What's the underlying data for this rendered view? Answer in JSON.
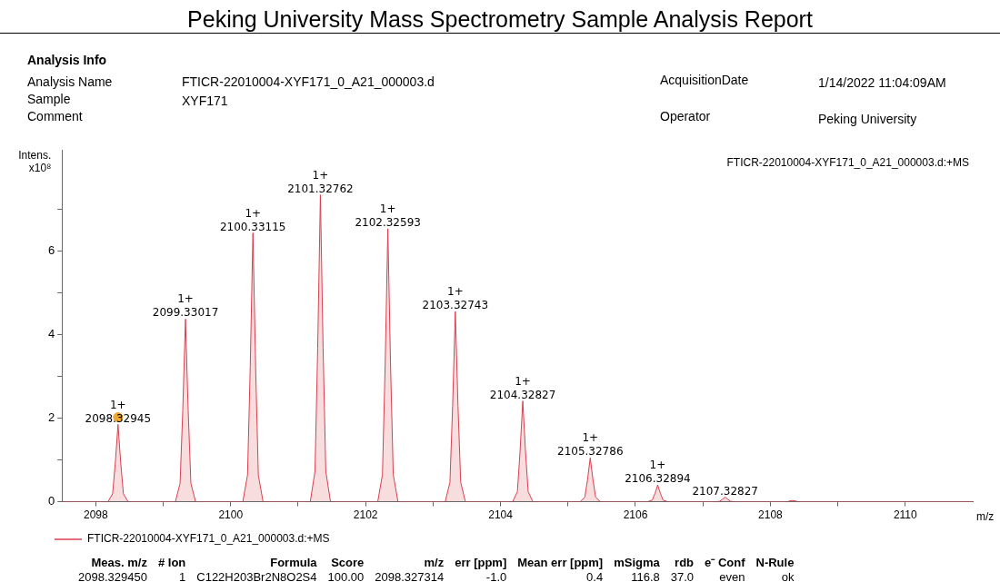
{
  "chart_data": {
    "type": "area",
    "title": "Peking University Mass Spectrometry Sample Analysis  Report",
    "xlabel": "m/z",
    "ylabel": "Intens.\nx10⁸",
    "xlim": [
      2097.5,
      2111
    ],
    "xticks": [
      {
        "value": 2098,
        "label": "2098"
      },
      {
        "value": 2099,
        "label": null
      },
      {
        "value": 2100,
        "label": "2100"
      },
      {
        "value": 2101,
        "label": null
      },
      {
        "value": 2102,
        "label": "2102"
      },
      {
        "value": 2103,
        "label": null
      },
      {
        "value": 2104,
        "label": "2104"
      },
      {
        "value": 2105,
        "label": null
      },
      {
        "value": 2106,
        "label": "2106"
      },
      {
        "value": 2107,
        "label": null
      },
      {
        "value": 2108,
        "label": "2108"
      },
      {
        "value": 2109,
        "label": null
      },
      {
        "value": 2110,
        "label": "2110"
      }
    ],
    "ylim": [
      0,
      8.4
    ],
    "yticks": [
      0,
      {
        "value": 1,
        "label": null
      },
      2,
      {
        "value": 3,
        "label": null
      },
      4,
      {
        "value": 5,
        "label": null
      },
      6,
      {
        "value": 7,
        "label": null
      }
    ],
    "grid": false,
    "legend": "bottom",
    "series": [
      {
        "name": "FTICR-22010004-XYF171_0_A21_000003.d:+MS",
        "color": "#d9404f",
        "x": [
          2097.5,
          2098.18,
          2098.25,
          2098.29,
          2098.33,
          2098.37,
          2098.41,
          2098.48,
          2099.18,
          2099.25,
          2099.29,
          2099.33,
          2099.37,
          2099.41,
          2099.48,
          2100.18,
          2100.25,
          2100.29,
          2100.33,
          2100.37,
          2100.41,
          2100.48,
          2101.18,
          2101.25,
          2101.29,
          2101.33,
          2101.37,
          2101.41,
          2101.48,
          2102.18,
          2102.25,
          2102.29,
          2102.33,
          2102.37,
          2102.41,
          2102.48,
          2103.18,
          2103.25,
          2103.29,
          2103.33,
          2103.37,
          2103.41,
          2103.48,
          2104.18,
          2104.25,
          2104.29,
          2104.33,
          2104.37,
          2104.41,
          2104.48,
          2105.18,
          2105.25,
          2105.29,
          2105.33,
          2105.37,
          2105.41,
          2105.48,
          2106.18,
          2106.25,
          2106.29,
          2106.33,
          2106.37,
          2106.41,
          2106.48,
          2107.18,
          2107.25,
          2107.29,
          2107.33,
          2107.37,
          2107.41,
          2107.48,
          2108.18,
          2108.25,
          2108.29,
          2108.33,
          2108.37,
          2108.41,
          2108.48,
          2111
        ],
        "values": [
          0,
          0,
          0.19,
          0.93,
          1.85,
          0.93,
          0.19,
          0,
          0,
          0.44,
          2.19,
          4.37,
          2.19,
          0.44,
          0,
          0,
          0.64,
          3.22,
          6.43,
          3.22,
          0.64,
          0,
          0,
          0.73,
          3.67,
          7.34,
          3.67,
          0.73,
          0,
          0,
          0.65,
          3.27,
          6.53,
          3.27,
          0.65,
          0,
          0,
          0.46,
          2.28,
          4.55,
          2.28,
          0.46,
          0,
          0,
          0.24,
          1.21,
          2.41,
          1.21,
          0.24,
          0,
          0,
          0.11,
          0.53,
          1.05,
          0.53,
          0.11,
          0,
          0,
          0.04,
          0.2,
          0.4,
          0.2,
          0.04,
          0,
          0,
          0.01,
          0.06,
          0.11,
          0.06,
          0.01,
          0,
          0,
          0,
          0.02,
          0.03,
          0.02,
          0,
          0,
          0
        ]
      },
      {
        "type": "scatter",
        "color": "#f0a830",
        "marker": "circle",
        "x": [
          2098.33
        ],
        "values": [
          2.02
        ]
      }
    ],
    "annotations": [
      "Analysis Info",
      "Analysis Name",
      "FTICR-22010004-XYF171_0_A21_000003.d",
      "Sample",
      "XYF171",
      "Comment",
      "AcquisitionDate",
      "1/14/2022 11:04:09AM",
      "Operator",
      "Peking University",
      "FTICR-22010004-XYF171_0_A21_000003.d:+MS",
      "Meas. m/z\t# Ion\tFormula\tScore\tm/z\terr [ppm]\tMean err [ppm]\tmSigma\trdb\te⁻ Conf\tN-Rule",
      "2098.329450\t1\tC122H203Br2N8O2S4\t100.00\t2098.327314\t-1.0\t0.4\t116.8\t37.0\teven\tok",
      {
        "text": "1+\n2098.32945",
        "x": 2098.33,
        "y": 1.85
      },
      {
        "text": "1+\n2099.33017",
        "x": 2099.33,
        "y": 4.37
      },
      {
        "text": "1+\n2100.33115",
        "x": 2100.33,
        "y": 6.43
      },
      {
        "text": "1+\n2101.32762",
        "x": 2101.33,
        "y": 7.34
      },
      {
        "text": "1+\n2102.32593",
        "x": 2102.33,
        "y": 6.53
      },
      {
        "text": "1+\n2103.32743",
        "x": 2103.33,
        "y": 4.55
      },
      {
        "text": "1+\n2104.32827",
        "x": 2104.33,
        "y": 2.41
      },
      {
        "text": "1+\n2105.32786",
        "x": 2105.33,
        "y": 1.05
      },
      {
        "text": "1+\n2106.32894",
        "x": 2106.33,
        "y": 0.4
      },
      {
        "text": "2107.32827",
        "x": 2107.33,
        "y": 0.11
      }
    ]
  }
}
